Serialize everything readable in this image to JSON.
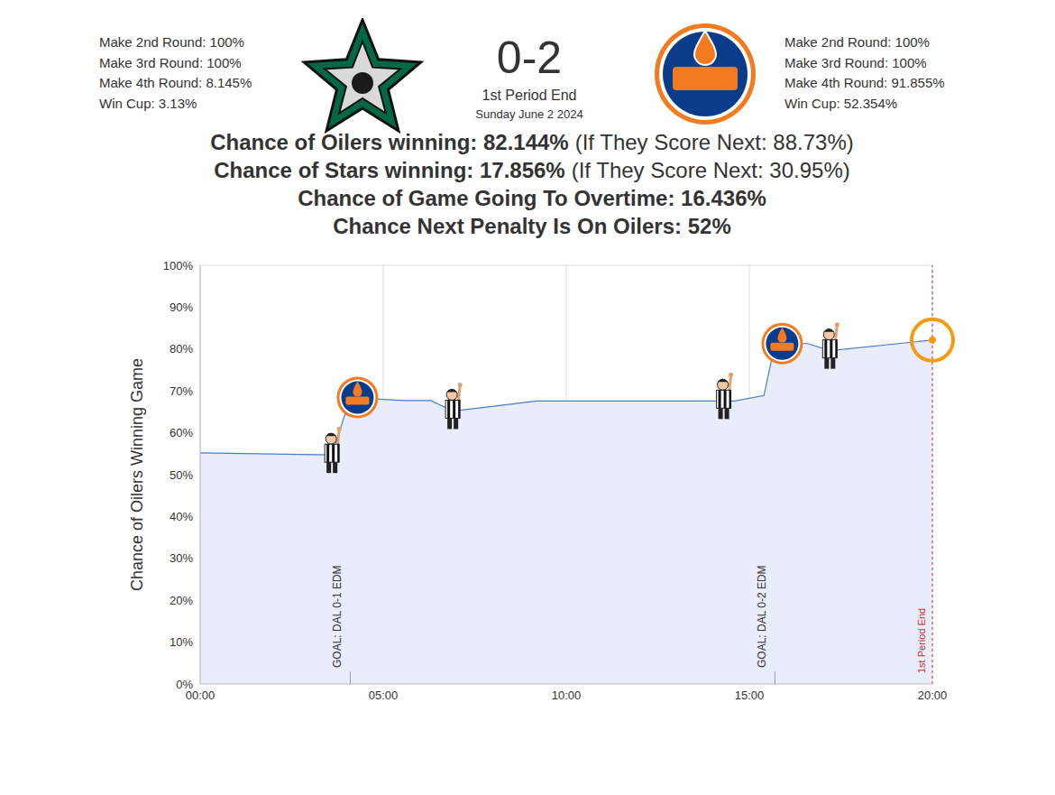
{
  "header": {
    "left_stats": [
      "Make 2nd Round: 100%",
      "Make 3rd Round: 100%",
      "Make 4th Round: 8.145%",
      "Win Cup: 3.13%"
    ],
    "score": "0-2",
    "period": "1st Period End",
    "date": "Sunday June 2 2024",
    "right_stats": [
      "Make 2nd Round: 100%",
      "Make 3rd Round: 100%",
      "Make 4th Round: 91.855%",
      "Win Cup: 52.354%"
    ]
  },
  "odds": [
    {
      "bold": "Chance of Oilers winning: 82.144%",
      "detail": "(If They Score Next: 88.73%)"
    },
    {
      "bold": "Chance of Stars winning: 17.856%",
      "detail": "(If They Score Next: 30.95%)"
    },
    {
      "bold": "Chance of Game Going To Overtime: 16.436%"
    },
    {
      "bold": "Chance Next Penalty Is On Oilers: 52%"
    }
  ],
  "chart_data": {
    "type": "line",
    "y_label": "Chance of Oilers Winning Game",
    "x": [
      0,
      3.6,
      4.1,
      5.6,
      6.3,
      6.9,
      9.2,
      14.6,
      15.4,
      15.7,
      16.6,
      17.2,
      20
    ],
    "values": [
      55.2,
      54.7,
      68.4,
      67.7,
      67.7,
      65.2,
      67.6,
      67.6,
      68.9,
      81.3,
      81.3,
      79.6,
      82.144
    ],
    "color": "#4a7bd0",
    "marker": "none",
    "xlim": [
      0,
      20
    ],
    "xticks": [
      {
        "value": 0,
        "label": "00:00"
      },
      {
        "value": 5,
        "label": "05:00"
      },
      {
        "value": 10,
        "label": "10:00"
      },
      {
        "value": 15,
        "label": "15:00"
      },
      {
        "value": 20,
        "label": "20:00"
      }
    ],
    "ylim": [
      0,
      100
    ],
    "yticks": [
      {
        "value": 0,
        "label": "0%"
      },
      {
        "value": 10,
        "label": "10%"
      },
      {
        "value": 20,
        "label": "20%"
      },
      {
        "value": 30,
        "label": "30%"
      },
      {
        "value": 40,
        "label": "40%"
      },
      {
        "value": 50,
        "label": "50%"
      },
      {
        "value": 60,
        "label": "60%"
      },
      {
        "value": 70,
        "label": "70%"
      },
      {
        "value": 80,
        "label": "80%"
      },
      {
        "value": 90,
        "label": "90%"
      },
      {
        "value": 100,
        "label": "100%"
      }
    ],
    "grid": true,
    "annotations": [
      {
        "x": 4.1,
        "text": "GOAL: DAL 0-1 EDM"
      },
      {
        "x": 15.7,
        "text": "GOAL: DAL 0-2 EDM"
      }
    ],
    "penalties": [
      3.6,
      6.9,
      14.3,
      17.2
    ],
    "period_end": {
      "x": 20,
      "text": "1st Period End"
    }
  }
}
